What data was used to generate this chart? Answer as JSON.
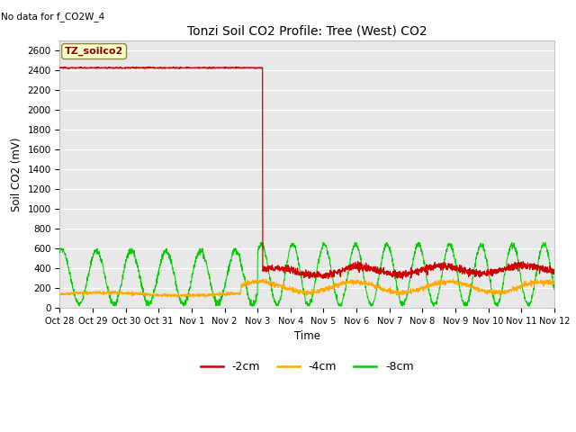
{
  "title": "Tonzi Soil CO2 Profile: Tree (West) CO2",
  "no_data_label": "No data for f_CO2W_4",
  "ylabel": "Soil CO2 (mV)",
  "xlabel": "Time",
  "legend_label": "TZ_soilco2",
  "ylim": [
    0,
    2700
  ],
  "yticks": [
    0,
    200,
    400,
    600,
    800,
    1000,
    1200,
    1400,
    1600,
    1800,
    2000,
    2200,
    2400,
    2600
  ],
  "xtick_labels": [
    "Oct 28",
    "Oct 29",
    "Oct 30",
    "Oct 31",
    "Nov 1",
    "Nov 2",
    "Nov 3",
    "Nov 4",
    "Nov 5",
    "Nov 6",
    "Nov 7",
    "Nov 8",
    "Nov 9",
    "Nov 10",
    "Nov 11",
    "Nov 12"
  ],
  "fig_facecolor": "#ffffff",
  "plot_bg_color": "#e8e8e8",
  "series_colors": {
    "2cm": "#cc0000",
    "4cm": "#ffaa00",
    "8cm": "#00cc00"
  },
  "legend_series": [
    {
      "label": "-2cm",
      "color": "#cc0000"
    },
    {
      "label": "-4cm",
      "color": "#ffaa00"
    },
    {
      "label": "-8cm",
      "color": "#00cc00"
    }
  ],
  "red_flat_value": 2420,
  "red_drop_day": 6.15,
  "n_days": 15
}
